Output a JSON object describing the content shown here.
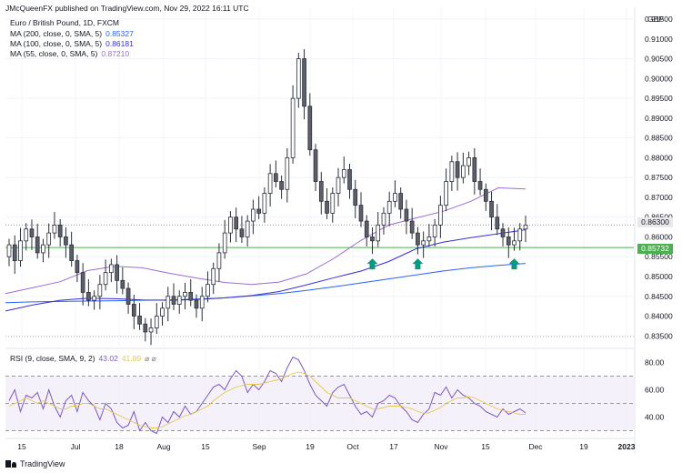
{
  "header": {
    "publisher": "JMcQueenFX published on TradingView.com, Nov 29, 2022 16:11 UTC"
  },
  "legend": {
    "symbol": "Euro / British Pound, 1D, FXCM",
    "ma200_label": "MA (200, close, 0, SMA, 5)",
    "ma200_value": "0.85327",
    "ma100_label": "MA (100, close, 0, SMA, 5)",
    "ma100_value": "0.86181",
    "ma55_label": "MA (55, close, 0, SMA, 5)",
    "ma55_value": "0.87210"
  },
  "rsi_legend": {
    "label": "RSI (9, close, SMA, 9, 2)",
    "rsi_value": "43.02",
    "ma_value": "41.89",
    "icons": "⌀ ⌀"
  },
  "price_badges": {
    "last": "0.86300",
    "support": "0.85732"
  },
  "currency": "GBP",
  "footer": {
    "brand": "TradingView"
  },
  "colors": {
    "up": "#ffffff",
    "down": "#5d606b",
    "ma200": "#2962ff",
    "ma100": "#3a2fd6",
    "ma55": "#9c6cd8",
    "support": "#4caf50",
    "arrow": "#089981",
    "rsi": "#7e57c2",
    "rsi_ma": "#e6c84c"
  },
  "chart_data": [
    {
      "type": "candlestick",
      "title": "Euro / British Pound, 1D, FXCM",
      "ylim": [
        0.833,
        0.918
      ],
      "y_ticks": [
        "0.91500",
        "0.91000",
        "0.90500",
        "0.90000",
        "0.89500",
        "0.89000",
        "0.88500",
        "0.88000",
        "0.87500",
        "0.87000",
        "0.86500",
        "0.86000",
        "0.85500",
        "0.85000",
        "0.84500",
        "0.84000",
        "0.83500"
      ],
      "x_ticks": [
        "15",
        "Jul",
        "18",
        "Aug",
        "15",
        "Sep",
        "19",
        "Oct",
        "17",
        "Nov",
        "15",
        "Dec",
        "19",
        "2023"
      ],
      "close_path": [
        0.858,
        0.854,
        0.859,
        0.862,
        0.86,
        0.856,
        0.858,
        0.861,
        0.863,
        0.86,
        0.858,
        0.854,
        0.851,
        0.846,
        0.844,
        0.845,
        0.848,
        0.851,
        0.853,
        0.849,
        0.847,
        0.843,
        0.84,
        0.838,
        0.836,
        0.837,
        0.84,
        0.842,
        0.845,
        0.843,
        0.845,
        0.846,
        0.844,
        0.842,
        0.845,
        0.848,
        0.852,
        0.856,
        0.861,
        0.865,
        0.862,
        0.86,
        0.864,
        0.867,
        0.866,
        0.871,
        0.876,
        0.874,
        0.872,
        0.88,
        0.895,
        0.905,
        0.893,
        0.882,
        0.874,
        0.869,
        0.866,
        0.871,
        0.875,
        0.877,
        0.872,
        0.868,
        0.864,
        0.86,
        0.859,
        0.863,
        0.866,
        0.869,
        0.871,
        0.867,
        0.864,
        0.861,
        0.858,
        0.859,
        0.86,
        0.863,
        0.868,
        0.874,
        0.879,
        0.875,
        0.878,
        0.88,
        0.874,
        0.872,
        0.869,
        0.865,
        0.862,
        0.86,
        0.858,
        0.859,
        0.862,
        0.863
      ],
      "arrows_at_index": [
        64,
        72,
        89
      ],
      "series": [
        {
          "name": "MA (200, close, 0, SMA, 5)",
          "values": [
            0.8434,
            0.8436,
            0.8437,
            0.8438,
            0.8439,
            0.844,
            0.8441,
            0.8443,
            0.8446,
            0.8451,
            0.8457,
            0.8465,
            0.8474,
            0.8484,
            0.8494,
            0.8504,
            0.8514,
            0.8522,
            0.8528,
            0.8533
          ]
        },
        {
          "name": "MA (100, close, 0, SMA, 5)",
          "values": [
            0.8413,
            0.8428,
            0.844,
            0.8445,
            0.8444,
            0.8441,
            0.844,
            0.8442,
            0.8446,
            0.8452,
            0.8462,
            0.8479,
            0.8497,
            0.8514,
            0.8538,
            0.857,
            0.8587,
            0.8598,
            0.8608,
            0.8618
          ]
        },
        {
          "name": "MA (55, close, 0, SMA, 5)",
          "values": [
            0.8457,
            0.8472,
            0.8487,
            0.8515,
            0.8526,
            0.8522,
            0.8508,
            0.8496,
            0.8485,
            0.848,
            0.8486,
            0.8507,
            0.8546,
            0.8592,
            0.863,
            0.8648,
            0.8665,
            0.869,
            0.8724,
            0.8721
          ]
        }
      ],
      "horizontal_lines": [
        {
          "value": 0.85732,
          "label": "0.85732"
        },
        {
          "value": 0.863,
          "label": "0.86300"
        }
      ]
    },
    {
      "type": "line",
      "title": "RSI (9, close, SMA, 9, 2)",
      "ylim": [
        27,
        87
      ],
      "y_ticks": [
        "80.00",
        "60.00",
        "40.00"
      ],
      "bands": [
        30,
        50,
        70
      ],
      "series": [
        {
          "name": "RSI",
          "values": [
            52,
            60,
            44,
            56,
            54,
            58,
            46,
            60,
            48,
            40,
            52,
            56,
            44,
            58,
            52,
            48,
            38,
            50,
            46,
            36,
            32,
            34,
            44,
            30,
            36,
            30,
            28,
            40,
            36,
            44,
            40,
            48,
            42,
            44,
            50,
            56,
            62,
            64,
            60,
            68,
            74,
            70,
            58,
            64,
            60,
            66,
            74,
            72,
            66,
            76,
            84,
            82,
            74,
            64,
            56,
            52,
            48,
            58,
            62,
            64,
            56,
            48,
            42,
            44,
            40,
            50,
            52,
            56,
            54,
            48,
            44,
            38,
            36,
            42,
            46,
            58,
            56,
            62,
            54,
            60,
            56,
            54,
            50,
            48,
            44,
            42,
            40,
            46,
            42,
            44,
            46,
            43
          ]
        },
        {
          "name": "RSI MA",
          "values": [
            48,
            50,
            52,
            54,
            52,
            50,
            52,
            50,
            48,
            46,
            46,
            48,
            48,
            50,
            50,
            48,
            46,
            46,
            44,
            42,
            40,
            38,
            36,
            34,
            33,
            32,
            32,
            33,
            35,
            37,
            39,
            41,
            42,
            44,
            46,
            48,
            52,
            55,
            58,
            60,
            62,
            63,
            64,
            64,
            64,
            65,
            66,
            67,
            68,
            70,
            72,
            73,
            72,
            70,
            66,
            62,
            58,
            56,
            54,
            54,
            54,
            52,
            50,
            48,
            46,
            46,
            47,
            48,
            48,
            48,
            47,
            46,
            44,
            43,
            43,
            45,
            47,
            50,
            52,
            54,
            54,
            55,
            54,
            52,
            50,
            48,
            46,
            45,
            44,
            43,
            42,
            42
          ]
        }
      ]
    }
  ]
}
